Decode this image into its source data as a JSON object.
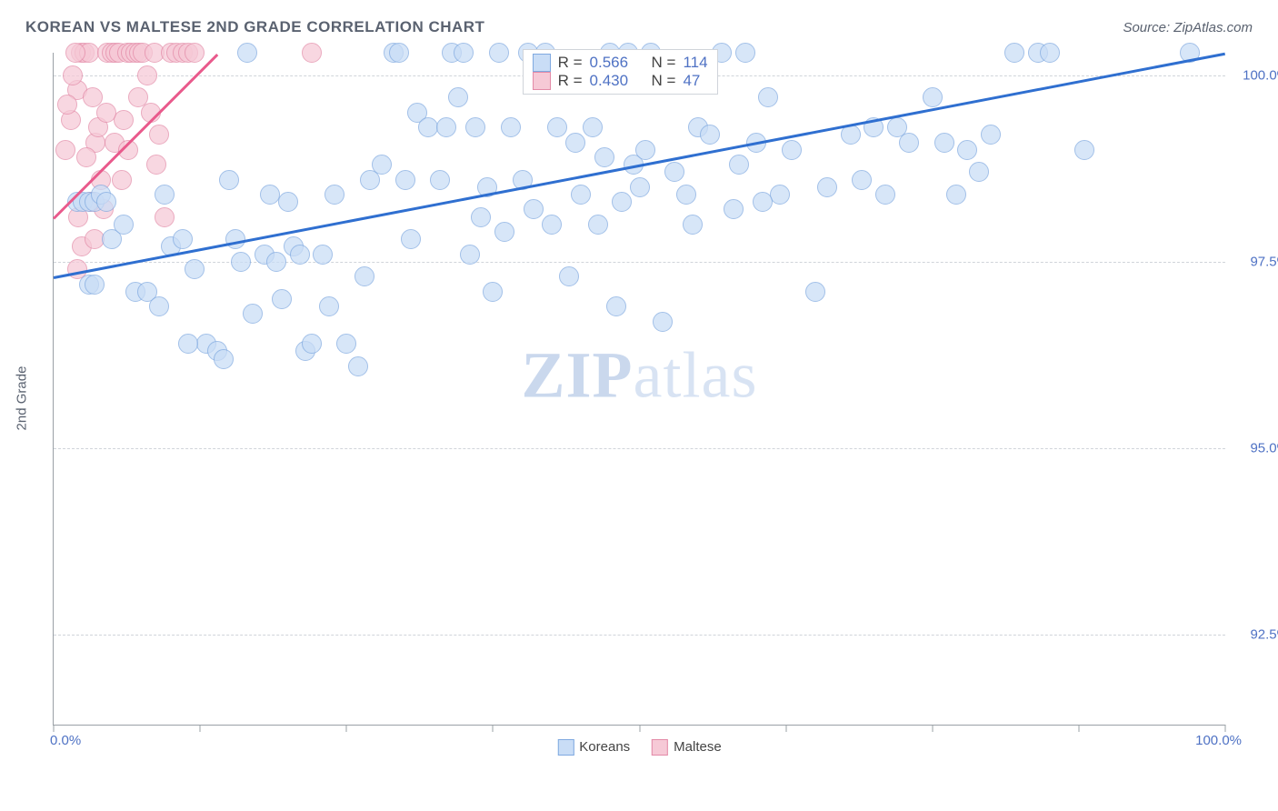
{
  "header": {
    "title": "KOREAN VS MALTESE 2ND GRADE CORRELATION CHART",
    "source": "Source: ZipAtlas.com"
  },
  "ylabel": "2nd Grade",
  "watermark": {
    "bold": "ZIP",
    "rest": "atlas"
  },
  "chart": {
    "type": "scatter",
    "background_color": "#ffffff",
    "grid_color": "#d0d4da",
    "axis_color": "#9aa0a6",
    "xlim": [
      0,
      100
    ],
    "ylim": [
      91.3,
      100.3
    ],
    "x_ticks_at": [
      0,
      12.5,
      25,
      37.5,
      50,
      62.5,
      75,
      87.5,
      100
    ],
    "x_tick_labels": {
      "0": "0.0%",
      "100": "100.0%"
    },
    "y_ticks": [
      {
        "v": 100.0,
        "label": "100.0%"
      },
      {
        "v": 97.5,
        "label": "97.5%"
      },
      {
        "v": 95.0,
        "label": "95.0%"
      },
      {
        "v": 92.5,
        "label": "92.5%"
      }
    ],
    "marker_radius": 10,
    "series": {
      "koreans": {
        "label": "Koreans",
        "fill": "#c9ddf6",
        "stroke": "#7fa9e0",
        "opacity": 0.72,
        "trend": {
          "color": "#2f6fd0",
          "width": 3,
          "x1": 0,
          "y1": 97.3,
          "x2": 100,
          "y2": 100.3
        },
        "R": "0.566",
        "N": "114",
        "points": [
          [
            2.0,
            98.3
          ],
          [
            2.5,
            98.3
          ],
          [
            3.0,
            98.3
          ],
          [
            3.5,
            98.3
          ],
          [
            4.0,
            98.4
          ],
          [
            4.5,
            98.3
          ],
          [
            3.0,
            97.2
          ],
          [
            3.5,
            97.2
          ],
          [
            7.0,
            97.1
          ],
          [
            8.0,
            97.1
          ],
          [
            10.0,
            97.7
          ],
          [
            11.0,
            97.8
          ],
          [
            12.0,
            97.4
          ],
          [
            13.0,
            96.4
          ],
          [
            14.0,
            96.3
          ],
          [
            14.5,
            96.2
          ],
          [
            15.0,
            98.6
          ],
          [
            15.5,
            97.8
          ],
          [
            16.0,
            97.5
          ],
          [
            17.0,
            96.8
          ],
          [
            18.0,
            97.6
          ],
          [
            18.5,
            98.4
          ],
          [
            19.0,
            97.5
          ],
          [
            20.0,
            98.3
          ],
          [
            20.5,
            97.7
          ],
          [
            21.0,
            97.6
          ],
          [
            21.5,
            96.3
          ],
          [
            22.0,
            96.4
          ],
          [
            23.0,
            97.6
          ],
          [
            24.0,
            98.4
          ],
          [
            25.0,
            96.4
          ],
          [
            26.0,
            96.1
          ],
          [
            27.0,
            98.6
          ],
          [
            28.0,
            98.8
          ],
          [
            29.0,
            100.3
          ],
          [
            29.5,
            100.3
          ],
          [
            30.0,
            98.6
          ],
          [
            31.0,
            99.5
          ],
          [
            32.0,
            99.3
          ],
          [
            33.0,
            98.6
          ],
          [
            33.5,
            99.3
          ],
          [
            34.0,
            100.3
          ],
          [
            34.5,
            99.7
          ],
          [
            35.0,
            100.3
          ],
          [
            36.0,
            99.3
          ],
          [
            36.5,
            98.1
          ],
          [
            37.0,
            98.5
          ],
          [
            37.5,
            97.1
          ],
          [
            38.0,
            100.3
          ],
          [
            39.0,
            99.3
          ],
          [
            40.0,
            98.6
          ],
          [
            40.5,
            100.3
          ],
          [
            41.0,
            98.2
          ],
          [
            42.0,
            100.3
          ],
          [
            43.0,
            99.3
          ],
          [
            44.0,
            97.3
          ],
          [
            45.0,
            98.4
          ],
          [
            46.0,
            99.3
          ],
          [
            47.0,
            98.9
          ],
          [
            47.5,
            100.3
          ],
          [
            48.0,
            96.9
          ],
          [
            48.5,
            98.3
          ],
          [
            49.0,
            100.3
          ],
          [
            49.5,
            98.8
          ],
          [
            50.0,
            98.5
          ],
          [
            51.0,
            100.3
          ],
          [
            52.0,
            96.7
          ],
          [
            53.0,
            98.7
          ],
          [
            54.0,
            98.4
          ],
          [
            55.0,
            99.3
          ],
          [
            56.0,
            99.2
          ],
          [
            57.0,
            100.3
          ],
          [
            58.0,
            98.2
          ],
          [
            59.0,
            100.3
          ],
          [
            60.0,
            99.1
          ],
          [
            63.0,
            99.0
          ],
          [
            65.0,
            97.1
          ],
          [
            68.0,
            99.2
          ],
          [
            70.0,
            99.3
          ],
          [
            72.0,
            99.3
          ],
          [
            73.0,
            99.1
          ],
          [
            75.0,
            99.7
          ],
          [
            76.0,
            99.1
          ],
          [
            78.0,
            99.0
          ],
          [
            80.0,
            99.2
          ],
          [
            82.0,
            100.3
          ],
          [
            84.0,
            100.3
          ],
          [
            85.0,
            100.3
          ],
          [
            88.0,
            99.0
          ],
          [
            97.0,
            100.3
          ],
          [
            5.0,
            97.8
          ],
          [
            6.0,
            98.0
          ],
          [
            9.0,
            96.9
          ],
          [
            11.5,
            96.4
          ],
          [
            19.5,
            97.0
          ],
          [
            23.5,
            96.9
          ],
          [
            26.5,
            97.3
          ],
          [
            30.5,
            97.8
          ],
          [
            35.5,
            97.6
          ],
          [
            38.5,
            97.9
          ],
          [
            42.5,
            98.0
          ],
          [
            46.5,
            98.0
          ],
          [
            50.5,
            99.0
          ],
          [
            54.5,
            98.0
          ],
          [
            58.5,
            98.8
          ],
          [
            62.0,
            98.4
          ],
          [
            66.0,
            98.5
          ],
          [
            69.0,
            98.6
          ],
          [
            77.0,
            98.4
          ],
          [
            16.5,
            100.3
          ],
          [
            44.5,
            99.1
          ],
          [
            60.5,
            98.3
          ],
          [
            71.0,
            98.4
          ],
          [
            79.0,
            98.7
          ],
          [
            61.0,
            99.7
          ],
          [
            9.5,
            98.4
          ]
        ]
      },
      "maltese": {
        "label": "Maltese",
        "fill": "#f6c9d6",
        "stroke": "#e38aa7",
        "opacity": 0.72,
        "trend": {
          "color": "#e95a8c",
          "width": 3,
          "x1": 0,
          "y1": 98.1,
          "x2": 14,
          "y2": 100.3
        },
        "R": "0.430",
        "N": "47",
        "points": [
          [
            1.0,
            99.0
          ],
          [
            1.5,
            99.4
          ],
          [
            2.0,
            99.8
          ],
          [
            2.3,
            100.3
          ],
          [
            2.6,
            100.3
          ],
          [
            3.0,
            100.3
          ],
          [
            3.3,
            99.7
          ],
          [
            3.6,
            99.1
          ],
          [
            4.0,
            98.6
          ],
          [
            4.3,
            98.2
          ],
          [
            4.6,
            100.3
          ],
          [
            5.0,
            100.3
          ],
          [
            5.3,
            100.3
          ],
          [
            5.6,
            100.3
          ],
          [
            6.0,
            99.4
          ],
          [
            6.3,
            100.3
          ],
          [
            6.6,
            100.3
          ],
          [
            7.0,
            100.3
          ],
          [
            7.3,
            100.3
          ],
          [
            7.6,
            100.3
          ],
          [
            8.0,
            100.0
          ],
          [
            8.3,
            99.5
          ],
          [
            8.6,
            100.3
          ],
          [
            9.0,
            99.2
          ],
          [
            9.5,
            98.1
          ],
          [
            10.0,
            100.3
          ],
          [
            10.5,
            100.3
          ],
          [
            11.0,
            100.3
          ],
          [
            11.5,
            100.3
          ],
          [
            12.0,
            100.3
          ],
          [
            2.1,
            98.1
          ],
          [
            2.4,
            97.7
          ],
          [
            2.8,
            98.9
          ],
          [
            3.2,
            98.3
          ],
          [
            3.5,
            97.8
          ],
          [
            3.8,
            99.3
          ],
          [
            1.2,
            99.6
          ],
          [
            1.6,
            100.0
          ],
          [
            1.9,
            100.3
          ],
          [
            4.5,
            99.5
          ],
          [
            5.2,
            99.1
          ],
          [
            5.8,
            98.6
          ],
          [
            6.4,
            99.0
          ],
          [
            7.2,
            99.7
          ],
          [
            22.0,
            100.3
          ],
          [
            8.8,
            98.8
          ],
          [
            2.0,
            97.4
          ]
        ]
      }
    },
    "legend_top_pos": {
      "left_pct": 40,
      "top_y": 100.35
    },
    "legend_bottom": [
      {
        "key": "koreans"
      },
      {
        "key": "maltese"
      }
    ]
  }
}
